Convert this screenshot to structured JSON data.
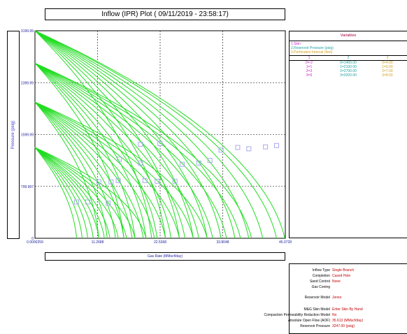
{
  "chart_data": {
    "type": "line",
    "title": "Inflow (IPR) Plot ( 09/11/2019 - 23:58:17)",
    "xlabel": "Gas Rate  (MMscf/day)",
    "ylabel": "Pressure  (psig)",
    "xlim": [
      2.59e-05,
      45.0728
    ],
    "ylim": [
      0,
      3199.99
    ],
    "x_ticks": [
      "0.0000259",
      "11.2688",
      "22.5368",
      "33.8048",
      "45.0728"
    ],
    "y_ticks": [
      "3199.99",
      "2399.99",
      "1599.99",
      "799.997",
      "0"
    ],
    "grid": true,
    "series_color": "#22dd22",
    "marker_color": "#aaaaee",
    "curve_families": [
      {
        "reservoir_pressure": 3199.99,
        "aof": [
          21.0,
          23.5,
          26.0,
          28.5,
          31.0,
          33.5,
          36.0,
          38.5,
          41.0,
          43.5,
          45.0
        ]
      },
      {
        "reservoir_pressure": 2700,
        "aof": [
          16.0,
          18.0,
          20.0,
          22.0,
          24.5,
          27.0,
          29.5,
          32.0,
          34.5,
          37.0,
          39.0
        ]
      },
      {
        "reservoir_pressure": 2100,
        "aof": [
          11.5,
          13.0,
          14.5,
          16.0,
          17.5,
          19.5,
          21.5,
          23.5,
          26.0,
          28.5,
          31.0
        ]
      },
      {
        "reservoir_pressure": 1400,
        "aof": [
          7.5,
          8.5,
          9.5,
          10.5,
          11.5,
          12.5,
          13.5,
          15.0,
          16.5,
          18.0,
          20.0
        ]
      }
    ],
    "markers": [
      {
        "x": 7.5,
        "y": 560
      },
      {
        "x": 9.5,
        "y": 560
      },
      {
        "x": 13.2,
        "y": 540
      },
      {
        "x": 11.5,
        "y": 870
      },
      {
        "x": 13.7,
        "y": 870
      },
      {
        "x": 15.0,
        "y": 890
      },
      {
        "x": 19.8,
        "y": 890
      },
      {
        "x": 22.0,
        "y": 880
      },
      {
        "x": 25.2,
        "y": 880
      },
      {
        "x": 15.2,
        "y": 1220
      },
      {
        "x": 19.0,
        "y": 1160
      },
      {
        "x": 26.5,
        "y": 1140
      },
      {
        "x": 29.5,
        "y": 1160
      },
      {
        "x": 31.5,
        "y": 1200
      },
      {
        "x": 19.0,
        "y": 1450
      },
      {
        "x": 22.5,
        "y": 1460
      },
      {
        "x": 33.5,
        "y": 1360
      },
      {
        "x": 36.5,
        "y": 1400
      },
      {
        "x": 38.5,
        "y": 1380
      },
      {
        "x": 41.5,
        "y": 1410
      },
      {
        "x": 43.5,
        "y": 1430
      }
    ]
  },
  "variables": {
    "title": "Variables",
    "legend": [
      {
        "text": "1.Skin",
        "color": "#d020d0"
      },
      {
        "text": "2.Reservoir Pressure (psig)",
        "color": "#20a0a0"
      },
      {
        "text": "3.Perforation Interval (feet)",
        "color": "#d0a020"
      }
    ],
    "columns": [
      {
        "text": "1",
        "color": "#d020d0"
      },
      {
        "text": "2",
        "color": "#20a0a0"
      },
      {
        "text": "3",
        "color": "#d0a020"
      }
    ],
    "rows": [
      [
        "0=-2",
        "0=1400.00",
        "0=4.00"
      ],
      [
        "1=1",
        "1=2100.00",
        "1=6.00"
      ],
      [
        "2=3",
        "2=2700.00",
        "2=7.00"
      ],
      [
        "3=6",
        "3=3200.00",
        "3=8.00"
      ]
    ]
  },
  "info": [
    {
      "label": "Inflow Type",
      "value": "Single Branch"
    },
    {
      "label": "Completion",
      "value": "Cased Hole"
    },
    {
      "label": "Sand Control",
      "value": "None"
    },
    {
      "label": "Gas Coning",
      "value": ""
    },
    {
      "label": "Reservoir Model",
      "value": "Jones"
    },
    {
      "label": "M&G Skin Model",
      "value": "Enter Skin By Hand"
    },
    {
      "label": "Compaction Permeability Reduction Model",
      "value": "No"
    },
    {
      "label": "Absolute Open Flow (AOF)",
      "value": "35.613  (MMscf/day)"
    },
    {
      "label": "Reservoir Pressure",
      "value": "3247.00  (psig)"
    }
  ]
}
